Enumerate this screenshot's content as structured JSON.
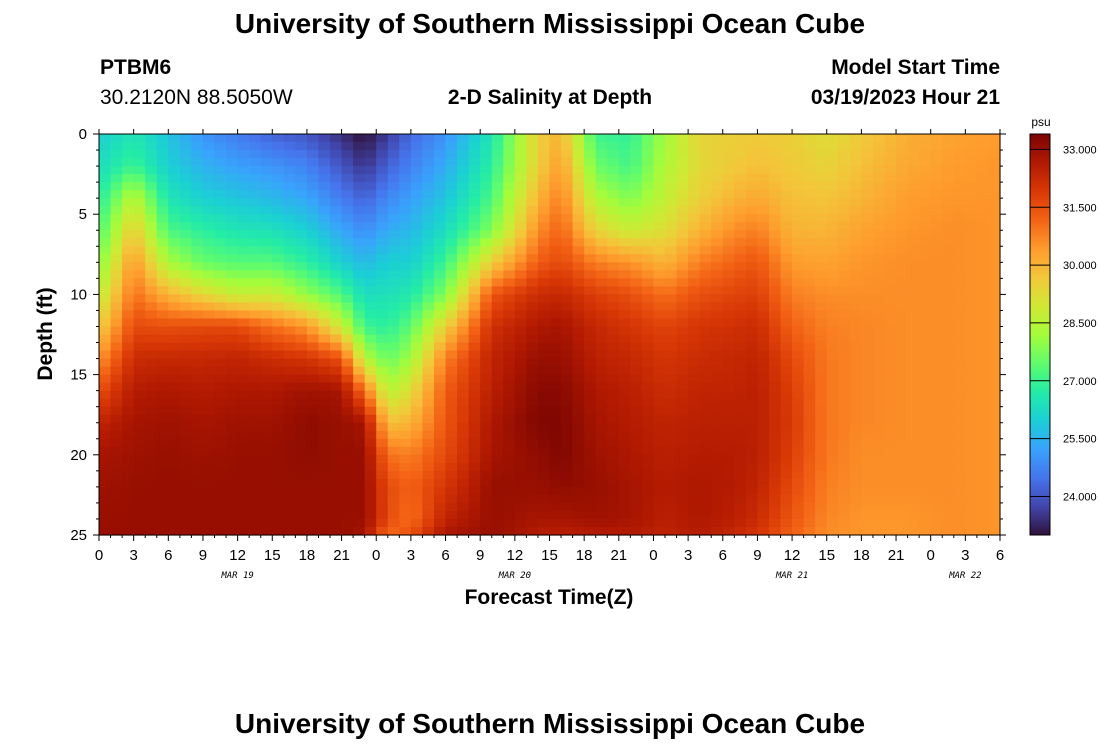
{
  "page": {
    "title": "University of Southern Mississippi Ocean Cube",
    "footer_title": "University of Southern Mississippi Ocean Cube"
  },
  "station": {
    "id": "PTBM6",
    "coords": "30.2120N  88.5050W"
  },
  "plot_title": "2-D Salinity at Depth",
  "model": {
    "label": "Model Start Time",
    "value": "03/19/2023 Hour 21"
  },
  "chart_data": {
    "type": "heatmap",
    "title": "2-D Salinity at Depth",
    "xlabel": "Forecast Time(Z)",
    "ylabel": "Depth (ft)",
    "x_hours_range": [
      0,
      78
    ],
    "x_ticks": [
      "0",
      "3",
      "6",
      "9",
      "12",
      "15",
      "18",
      "21",
      "0",
      "3",
      "6",
      "9",
      "12",
      "15",
      "18",
      "21",
      "0",
      "3",
      "6",
      "9",
      "12",
      "15",
      "18",
      "21",
      "0",
      "3",
      "6"
    ],
    "date_labels": [
      {
        "label": "MAR 19",
        "hour": 12
      },
      {
        "label": "MAR 20",
        "hour": 36
      },
      {
        "label": "MAR 21",
        "hour": 60
      },
      {
        "label": "MAR 22",
        "hour": 75
      }
    ],
    "ylim": [
      0,
      25
    ],
    "y_ticks": [
      "0",
      "5",
      "10",
      "15",
      "20",
      "25"
    ],
    "colorbar": {
      "unit": "psu",
      "range": [
        23.0,
        33.4
      ],
      "ticks": [
        "33.000",
        "31.500",
        "30.000",
        "28.500",
        "27.000",
        "25.500",
        "24.000"
      ],
      "tick_values": [
        33.0,
        31.5,
        30.0,
        28.5,
        27.0,
        25.5,
        24.0
      ],
      "colormap": [
        "#30123b",
        "#4145ab",
        "#4675ed",
        "#39a2fc",
        "#1bcfd4",
        "#24eca6",
        "#61fc6c",
        "#a4fc3b",
        "#d1e834",
        "#f3c63a",
        "#fe9b2d",
        "#f36315",
        "#d93806",
        "#b11901",
        "#7a0402"
      ]
    },
    "salinity_profiles": [
      {
        "hour": 0,
        "values": [
          26.0,
          26.3,
          26.7,
          27.2,
          27.8,
          28.6,
          29.5,
          30.5,
          31.5,
          32.4,
          32.8,
          32.9,
          33.0,
          33.0
        ]
      },
      {
        "hour": 3,
        "values": [
          26.5,
          27.0,
          28.6,
          29.6,
          30.5,
          31.0,
          31.6,
          32.2,
          32.6,
          32.8,
          32.9,
          33.0,
          33.0,
          33.0
        ]
      },
      {
        "hour": 6,
        "values": [
          25.8,
          26.0,
          26.5,
          27.2,
          28.3,
          30.0,
          31.5,
          32.3,
          32.7,
          32.9,
          33.0,
          33.0,
          33.0,
          33.0
        ]
      },
      {
        "hour": 9,
        "values": [
          25.0,
          25.5,
          26.0,
          26.8,
          27.5,
          29.3,
          31.6,
          32.3,
          32.6,
          32.8,
          32.9,
          33.0,
          33.0,
          33.0
        ]
      },
      {
        "hour": 12,
        "values": [
          24.6,
          25.2,
          25.8,
          26.5,
          27.3,
          28.7,
          31.6,
          32.4,
          32.7,
          32.9,
          33.0,
          33.0,
          33.0,
          33.0
        ]
      },
      {
        "hour": 15,
        "values": [
          24.2,
          25.0,
          25.6,
          26.4,
          27.3,
          28.8,
          31.0,
          32.2,
          32.7,
          32.9,
          33.0,
          33.0,
          33.0,
          33.0
        ]
      },
      {
        "hour": 18,
        "values": [
          24.0,
          24.7,
          25.3,
          26.0,
          26.8,
          28.0,
          30.5,
          32.0,
          32.9,
          33.1,
          33.1,
          33.0,
          33.0,
          33.0
        ]
      },
      {
        "hour": 21,
        "values": [
          23.4,
          24.0,
          24.6,
          25.3,
          26.0,
          27.2,
          28.8,
          31.5,
          32.8,
          33.0,
          33.0,
          33.0,
          33.0,
          33.0
        ]
      },
      {
        "hour": 23,
        "values": [
          23.0,
          23.5,
          24.2,
          24.9,
          25.6,
          26.3,
          27.0,
          28.5,
          31.0,
          32.8,
          33.0,
          33.0,
          33.0,
          32.8
        ]
      },
      {
        "hour": 25,
        "values": [
          23.6,
          24.2,
          24.8,
          25.4,
          26.0,
          26.4,
          26.8,
          27.5,
          28.5,
          29.8,
          31.0,
          31.6,
          31.6,
          31.0
        ]
      },
      {
        "hour": 27,
        "values": [
          24.3,
          24.7,
          25.2,
          25.6,
          26.0,
          26.6,
          27.4,
          28.2,
          29.2,
          30.0,
          30.8,
          31.2,
          31.0,
          31.5
        ]
      },
      {
        "hour": 30,
        "values": [
          25.0,
          25.4,
          25.8,
          26.3,
          27.0,
          27.8,
          29.5,
          30.8,
          31.3,
          31.4,
          31.6,
          32.0,
          32.4,
          32.8
        ]
      },
      {
        "hour": 34,
        "values": [
          26.5,
          26.8,
          27.2,
          27.8,
          29.5,
          31.4,
          32.1,
          32.4,
          32.5,
          32.7,
          32.8,
          33.0,
          33.0,
          33.0
        ]
      },
      {
        "hour": 38,
        "values": [
          29.5,
          29.5,
          30.0,
          30.6,
          31.3,
          32.2,
          32.7,
          33.0,
          33.2,
          33.3,
          33.1,
          33.0,
          32.8,
          32.6
        ]
      },
      {
        "hour": 40,
        "values": [
          30.0,
          30.4,
          30.8,
          31.2,
          31.6,
          32.3,
          32.8,
          33.0,
          33.2,
          33.3,
          33.3,
          33.1,
          32.8,
          32.5
        ]
      },
      {
        "hour": 43,
        "values": [
          27.0,
          27.6,
          28.4,
          29.4,
          30.8,
          31.8,
          32.3,
          32.5,
          32.7,
          32.8,
          32.9,
          33.0,
          32.9,
          32.6
        ]
      },
      {
        "hour": 46,
        "values": [
          26.9,
          27.1,
          27.8,
          28.8,
          30.5,
          31.5,
          32.0,
          32.3,
          32.5,
          32.6,
          32.7,
          32.8,
          32.8,
          32.6
        ]
      },
      {
        "hour": 49,
        "values": [
          28.2,
          28.4,
          28.7,
          29.2,
          30.0,
          31.0,
          31.7,
          32.0,
          32.2,
          32.4,
          32.5,
          32.6,
          32.5,
          32.4
        ]
      },
      {
        "hour": 52,
        "values": [
          29.4,
          29.3,
          29.5,
          30.0,
          30.8,
          31.5,
          32.0,
          32.2,
          32.4,
          32.5,
          32.6,
          32.7,
          32.7,
          32.6
        ]
      },
      {
        "hour": 55,
        "values": [
          29.5,
          29.6,
          30.0,
          30.6,
          31.2,
          31.7,
          32.1,
          32.3,
          32.4,
          32.5,
          32.6,
          32.6,
          32.5,
          32.3
        ]
      },
      {
        "hour": 57,
        "values": [
          29.6,
          29.8,
          30.2,
          30.8,
          31.4,
          31.8,
          32.2,
          32.4,
          32.5,
          32.5,
          32.5,
          32.4,
          32.2,
          32.0
        ]
      },
      {
        "hour": 60,
        "values": [
          29.5,
          29.6,
          29.8,
          30.0,
          30.4,
          30.8,
          31.2,
          31.6,
          31.8,
          31.9,
          31.8,
          31.6,
          31.4,
          31.2
        ]
      },
      {
        "hour": 63,
        "values": [
          29.2,
          29.4,
          29.7,
          30.0,
          30.3,
          30.6,
          30.8,
          30.9,
          30.9,
          30.9,
          30.9,
          30.8,
          30.7,
          30.6
        ]
      },
      {
        "hour": 66,
        "values": [
          29.6,
          29.8,
          30.0,
          30.3,
          30.5,
          30.6,
          30.7,
          30.7,
          30.7,
          30.7,
          30.6,
          30.6,
          30.5,
          30.5
        ]
      },
      {
        "hour": 70,
        "values": [
          30.1,
          30.2,
          30.4,
          30.5,
          30.6,
          30.6,
          30.6,
          30.6,
          30.6,
          30.6,
          30.6,
          30.6,
          30.5,
          30.5
        ]
      },
      {
        "hour": 74,
        "values": [
          30.3,
          30.4,
          30.5,
          30.6,
          30.6,
          30.6,
          30.6,
          30.6,
          30.6,
          30.6,
          30.6,
          30.6,
          30.6,
          30.6
        ]
      },
      {
        "hour": 78,
        "values": [
          30.4,
          30.5,
          30.5,
          30.5,
          30.5,
          30.5,
          30.5,
          30.5,
          30.5,
          30.5,
          30.5,
          30.5,
          30.5,
          30.5
        ]
      }
    ],
    "profile_depths": [
      0,
      2,
      4,
      6,
      8,
      10,
      12,
      14,
      16,
      18,
      20,
      22,
      24,
      25
    ]
  }
}
